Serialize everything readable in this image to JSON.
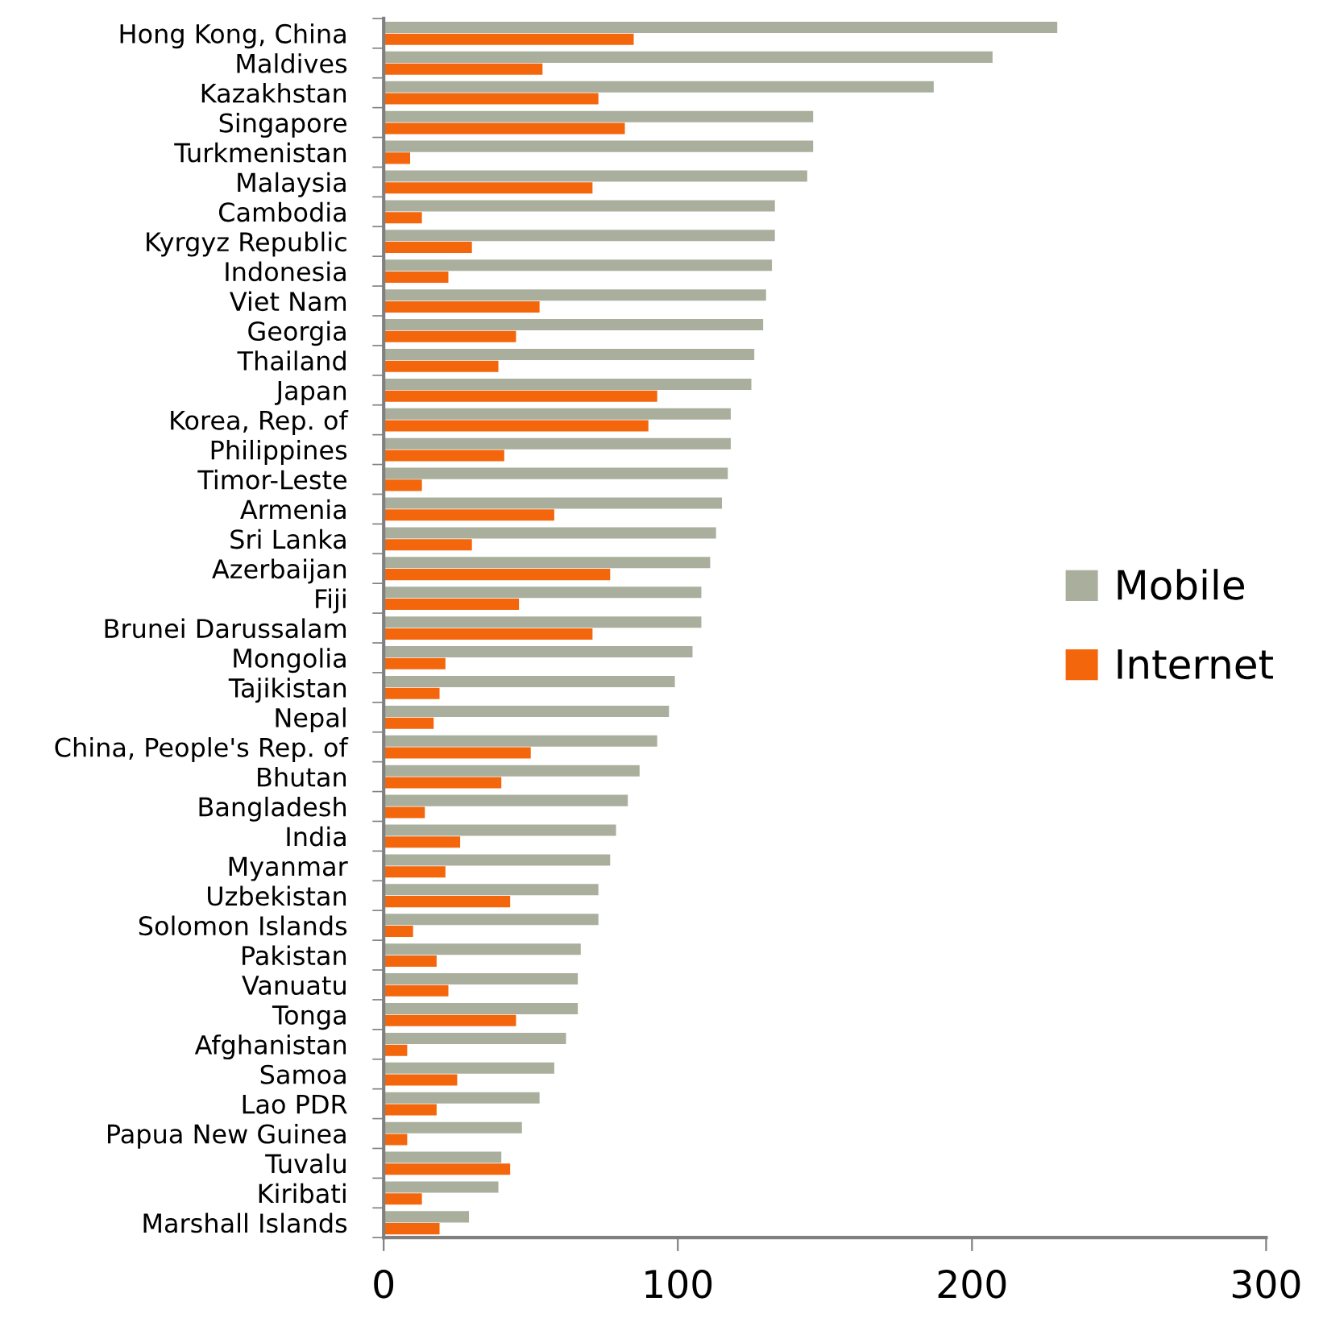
{
  "chart_data": {
    "type": "bar",
    "orientation": "horizontal",
    "categories": [
      "Hong Kong, China",
      "Maldives",
      "Kazakhstan",
      "Singapore",
      "Turkmenistan",
      "Malaysia",
      "Cambodia",
      "Kyrgyz Republic",
      "Indonesia",
      "Viet Nam",
      "Georgia",
      "Thailand",
      "Japan",
      "Korea, Rep. of",
      "Philippines",
      "Timor-Leste",
      "Armenia",
      "Sri Lanka",
      "Azerbaijan",
      "Fiji",
      "Brunei Darussalam",
      "Mongolia",
      "Tajikistan",
      "Nepal",
      "China, People's Rep. of",
      "Bhutan",
      "Bangladesh",
      "India",
      "Myanmar",
      "Uzbekistan",
      "Solomon Islands",
      "Pakistan",
      "Vanuatu",
      "Tonga",
      "Afghanistan",
      "Samoa",
      "Lao PDR",
      "Papua New Guinea",
      "Tuvalu",
      "Kiribati",
      "Marshall Islands"
    ],
    "series": [
      {
        "name": "Mobile",
        "color": "#a9af9c",
        "values": [
          229,
          207,
          187,
          146,
          146,
          144,
          133,
          133,
          132,
          130,
          129,
          126,
          125,
          118,
          118,
          117,
          115,
          113,
          111,
          108,
          108,
          105,
          99,
          97,
          93,
          87,
          83,
          79,
          77,
          73,
          73,
          67,
          66,
          66,
          62,
          58,
          53,
          47,
          40,
          39,
          29
        ]
      },
      {
        "name": "Internet",
        "color": "#f4660c",
        "values": [
          85,
          54,
          73,
          82,
          9,
          71,
          13,
          30,
          22,
          53,
          45,
          39,
          93,
          90,
          41,
          13,
          58,
          30,
          77,
          46,
          71,
          21,
          19,
          17,
          50,
          40,
          14,
          26,
          21,
          43,
          10,
          18,
          22,
          45,
          8,
          25,
          18,
          8,
          43,
          13,
          19
        ]
      }
    ],
    "xlim": [
      0,
      300
    ],
    "xticks": [
      0,
      100,
      200,
      300
    ],
    "grid": false,
    "legend": "right"
  }
}
